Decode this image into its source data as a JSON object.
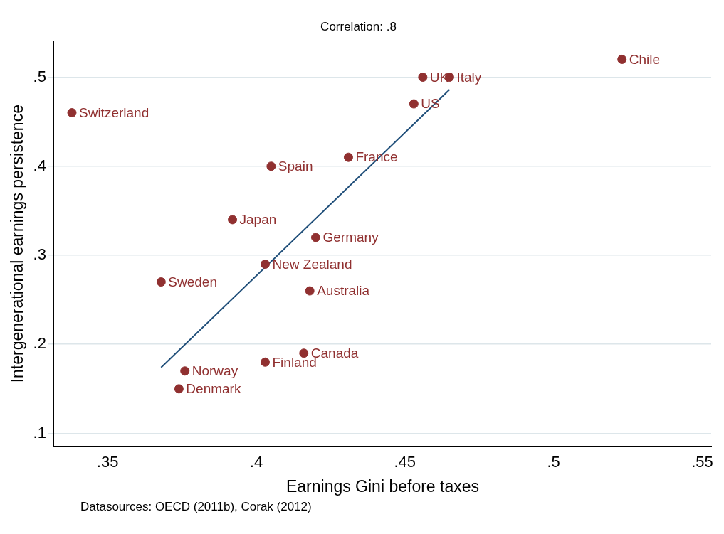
{
  "chart_data": {
    "type": "scatter",
    "title": "Correlation: .8",
    "xlabel": "Earnings Gini before taxes",
    "ylabel": "Intergenerational earnings persistence",
    "x": [
      0.523,
      0.456,
      0.465,
      0.453,
      0.338,
      0.431,
      0.405,
      0.392,
      0.42,
      0.403,
      0.368,
      0.418,
      0.416,
      0.403,
      0.376,
      0.374
    ],
    "series": [
      {
        "color": "#903030",
        "marker": "circle",
        "values": [
          0.52,
          0.5,
          0.5,
          0.47,
          0.46,
          0.41,
          0.4,
          0.34,
          0.32,
          0.29,
          0.27,
          0.26,
          0.19,
          0.18,
          0.17,
          0.15
        ]
      },
      {
        "type": "line",
        "color": "#1f4e79",
        "x": [
          0.368,
          0.465
        ],
        "values": [
          0.174,
          0.486
        ]
      }
    ],
    "xlim": [
      0.332,
      0.553
    ],
    "ylim": [
      0.086,
      0.54
    ],
    "xticks": [
      {
        "value": 0.35,
        "label": ".35"
      },
      {
        "value": 0.4,
        "label": ".4"
      },
      {
        "value": 0.45,
        "label": ".45"
      },
      {
        "value": 0.5,
        "label": ".5"
      },
      {
        "value": 0.55,
        "label": ".55"
      }
    ],
    "yticks": [
      {
        "value": 0.1,
        "label": ".1"
      },
      {
        "value": 0.2,
        "label": ".2"
      },
      {
        "value": 0.3,
        "label": ".3"
      },
      {
        "value": 0.4,
        "label": ".4"
      },
      {
        "value": 0.5,
        "label": ".5"
      }
    ],
    "grid": "y",
    "legend": false,
    "annotations": [
      {
        "text": "Chile",
        "x": 0.523,
        "y": 0.52
      },
      {
        "text": "UK",
        "x": 0.456,
        "y": 0.5
      },
      {
        "text": "Italy",
        "x": 0.465,
        "y": 0.5
      },
      {
        "text": "US",
        "x": 0.453,
        "y": 0.47
      },
      {
        "text": "Switzerland",
        "x": 0.338,
        "y": 0.46
      },
      {
        "text": "France",
        "x": 0.431,
        "y": 0.41
      },
      {
        "text": "Spain",
        "x": 0.405,
        "y": 0.4
      },
      {
        "text": "Japan",
        "x": 0.392,
        "y": 0.34
      },
      {
        "text": "Germany",
        "x": 0.42,
        "y": 0.32
      },
      {
        "text": "New Zealand",
        "x": 0.403,
        "y": 0.29
      },
      {
        "text": "Sweden",
        "x": 0.368,
        "y": 0.27
      },
      {
        "text": "Australia",
        "x": 0.418,
        "y": 0.26
      },
      {
        "text": "Canada",
        "x": 0.416,
        "y": 0.19
      },
      {
        "text": "Finland",
        "x": 0.403,
        "y": 0.18
      },
      {
        "text": "Norway",
        "x": 0.376,
        "y": 0.17
      },
      {
        "text": "Denmark",
        "x": 0.374,
        "y": 0.15
      },
      "Datasources: OECD (2011b), Corak (2012)"
    ]
  }
}
